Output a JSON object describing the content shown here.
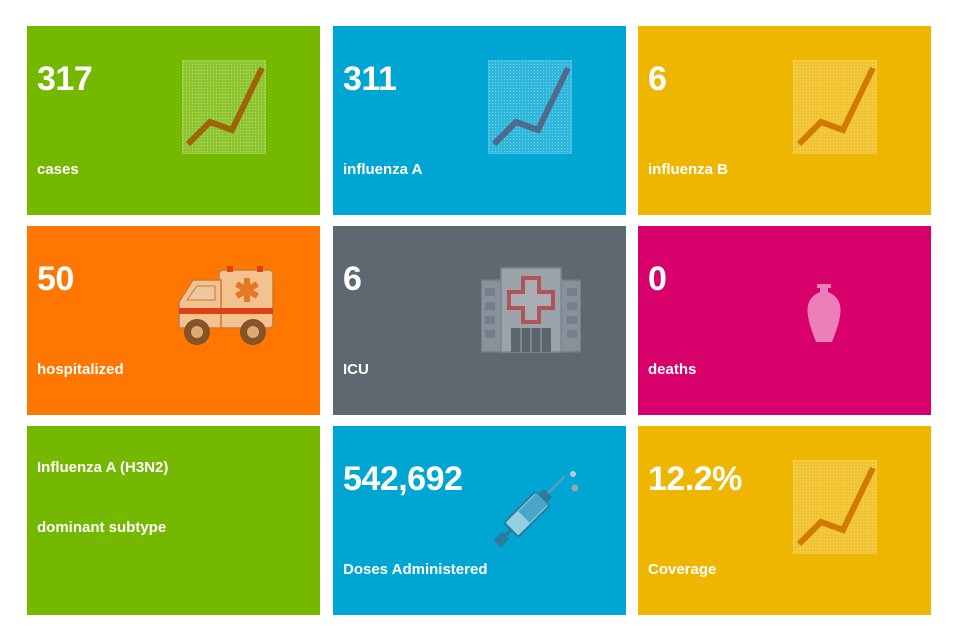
{
  "tiles": {
    "cases": {
      "value": "317",
      "label": "cases"
    },
    "influenza_a": {
      "value": "311",
      "label": "influenza A"
    },
    "influenza_b": {
      "value": "6",
      "label": "influenza B"
    },
    "hospitalized": {
      "value": "50",
      "label": "hospitalized"
    },
    "icu": {
      "value": "6",
      "label": "ICU"
    },
    "deaths": {
      "value": "0",
      "label": "deaths"
    },
    "subtype": {
      "line1": "Influenza A (H3N2)",
      "line2": "dominant subtype"
    },
    "doses": {
      "value": "542,692",
      "label": "Doses Administered"
    },
    "coverage": {
      "value": "12.2%",
      "label": "Coverage"
    }
  },
  "icons": {
    "chart": "chart-increasing-icon",
    "ambulance": "ambulance-icon",
    "hospital": "hospital-icon",
    "urn": "funeral-urn-icon",
    "syringe": "syringe-icon"
  },
  "colors": {
    "green": "#75b800",
    "blue": "#00a6d3",
    "yellow": "#eeb600",
    "orange": "#ff7700",
    "grey": "#5d6871",
    "pink": "#d8006b"
  }
}
